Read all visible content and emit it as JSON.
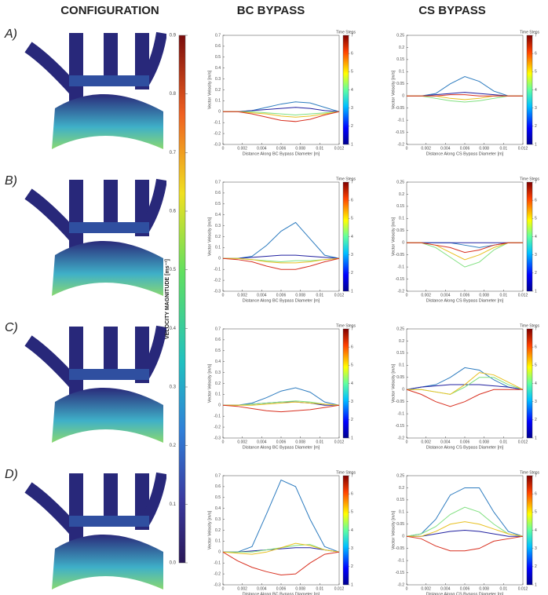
{
  "headers": [
    "CONFIGURATION",
    "BC BYPASS",
    "CS BYPASS"
  ],
  "row_labels": [
    "A)",
    "B)",
    "C)",
    "D)"
  ],
  "colorbar": {
    "label": "VELOCITY MAGNITUDE [ms⁻¹]",
    "lim": [
      0,
      0.9
    ],
    "ticks": [
      {
        "value": 0,
        "label": "0.0"
      },
      0.1,
      0.2,
      0.3,
      0.4,
      0.5,
      0.6,
      0.7,
      0.8,
      0.9
    ]
  },
  "chart_data": [
    {
      "type": "line",
      "xlabel": "Distance Along BC Bypass Diameter [m]",
      "ylabel": "Vector Velocity [m/s]",
      "x": [
        0,
        0.0015,
        0.003,
        0.0045,
        0.006,
        0.0075,
        0.009,
        0.0105,
        0.012
      ],
      "xlim": [
        0,
        0.012
      ],
      "xticks": [
        0,
        0.002,
        0.004,
        0.006,
        0.008,
        0.01,
        0.012
      ],
      "ylim": [
        -0.3,
        0.7
      ],
      "yticks": [
        -0.3,
        -0.2,
        -0.1,
        0,
        0.1,
        0.2,
        0.3,
        0.4,
        0.5,
        0.6,
        0.7
      ],
      "colorbar": {
        "label": "Time Steps",
        "lim": [
          1,
          7
        ],
        "ticks": [
          1,
          2,
          3,
          4,
          5,
          6,
          7
        ]
      },
      "series": [
        {
          "color": "#2c7bbf",
          "values": [
            0,
            0,
            0.01,
            0.04,
            0.07,
            0.09,
            0.08,
            0.04,
            0
          ]
        },
        {
          "color": "#2020a0",
          "values": [
            0,
            0,
            0.01,
            0.02,
            0.03,
            0.04,
            0.03,
            0.01,
            0
          ]
        },
        {
          "color": "#80e080",
          "values": [
            0,
            0,
            0,
            -0.01,
            -0.02,
            -0.03,
            -0.02,
            -0.01,
            0
          ]
        },
        {
          "color": "#e8c020",
          "values": [
            0,
            0,
            -0.01,
            -0.02,
            -0.04,
            -0.05,
            -0.04,
            -0.02,
            0
          ]
        },
        {
          "color": "#d83020",
          "values": [
            0,
            0,
            -0.02,
            -0.05,
            -0.08,
            -0.09,
            -0.07,
            -0.03,
            0
          ]
        }
      ]
    },
    {
      "type": "line",
      "xlabel": "Distance Along CS Bypass Diameter [m]",
      "ylabel": "Vector Velocity [m/s]",
      "x": [
        0,
        0.0015,
        0.003,
        0.0045,
        0.006,
        0.0075,
        0.009,
        0.0105,
        0.012
      ],
      "xlim": [
        0,
        0.012
      ],
      "xticks": [
        0,
        0.002,
        0.004,
        0.006,
        0.008,
        0.01,
        0.012
      ],
      "ylim": [
        -0.2,
        0.25
      ],
      "yticks": [
        -0.2,
        -0.15,
        -0.1,
        -0.05,
        0,
        0.05,
        0.1,
        0.15,
        0.2,
        0.25
      ],
      "colorbar": {
        "label": "Time Steps",
        "lim": [
          1,
          7
        ],
        "ticks": [
          1,
          2,
          3,
          4,
          5,
          6,
          7
        ]
      },
      "series": [
        {
          "color": "#2c7bbf",
          "values": [
            0,
            0,
            0.01,
            0.05,
            0.08,
            0.06,
            0.02,
            0,
            0
          ]
        },
        {
          "color": "#2020a0",
          "values": [
            0,
            0,
            0.005,
            0.01,
            0.015,
            0.01,
            0.005,
            0,
            0
          ]
        },
        {
          "color": "#80e080",
          "values": [
            0,
            0,
            -0.01,
            -0.02,
            -0.025,
            -0.02,
            -0.01,
            0,
            0
          ]
        },
        {
          "color": "#e8c020",
          "values": [
            0,
            0,
            0,
            -0.01,
            -0.015,
            -0.01,
            0,
            0,
            0
          ]
        },
        {
          "color": "#d83020",
          "values": [
            0,
            0,
            0,
            0.005,
            0.005,
            0,
            0,
            0,
            0
          ]
        }
      ]
    },
    {
      "type": "line",
      "xlabel": "Distance Along BC Bypass Diameter [m]",
      "ylabel": "Vector Velocity [m/s]",
      "x": [
        0,
        0.0015,
        0.003,
        0.0045,
        0.006,
        0.0075,
        0.009,
        0.0105,
        0.012
      ],
      "xlim": [
        0,
        0.012
      ],
      "xticks": [
        0,
        0.002,
        0.004,
        0.006,
        0.008,
        0.01,
        0.012
      ],
      "ylim": [
        -0.3,
        0.7
      ],
      "yticks": [
        -0.3,
        -0.2,
        -0.1,
        0,
        0.1,
        0.2,
        0.3,
        0.4,
        0.5,
        0.6,
        0.7
      ],
      "colorbar": {
        "label": "Time Steps",
        "lim": [
          1,
          7
        ],
        "ticks": [
          1,
          2,
          3,
          4,
          5,
          6,
          7
        ]
      },
      "series": [
        {
          "color": "#2c7bbf",
          "values": [
            0,
            0,
            0.02,
            0.12,
            0.25,
            0.33,
            0.18,
            0.03,
            0
          ]
        },
        {
          "color": "#2020a0",
          "values": [
            0,
            0,
            0.01,
            0.02,
            0.03,
            0.03,
            0.02,
            0.01,
            0
          ]
        },
        {
          "color": "#80e080",
          "values": [
            0,
            0,
            -0.01,
            -0.02,
            -0.03,
            -0.02,
            -0.02,
            -0.01,
            0
          ]
        },
        {
          "color": "#e8c020",
          "values": [
            0,
            0,
            -0.01,
            -0.03,
            -0.04,
            -0.04,
            -0.03,
            -0.01,
            0
          ]
        },
        {
          "color": "#d83020",
          "values": [
            0,
            -0.01,
            -0.03,
            -0.07,
            -0.1,
            -0.1,
            -0.07,
            -0.03,
            0
          ]
        }
      ]
    },
    {
      "type": "line",
      "xlabel": "Distance Along CS Bypass Diameter [m]",
      "ylabel": "Vector Velocity [m/s]",
      "x": [
        0,
        0.0015,
        0.003,
        0.0045,
        0.006,
        0.0075,
        0.009,
        0.0105,
        0.012
      ],
      "xlim": [
        0,
        0.012
      ],
      "xticks": [
        0,
        0.002,
        0.004,
        0.006,
        0.008,
        0.01,
        0.012
      ],
      "ylim": [
        -0.2,
        0.25
      ],
      "yticks": [
        -0.2,
        -0.15,
        -0.1,
        -0.05,
        0,
        0.05,
        0.1,
        0.15,
        0.2,
        0.25
      ],
      "colorbar": {
        "label": "Time Steps",
        "lim": [
          1,
          7
        ],
        "ticks": [
          1,
          2,
          3,
          4,
          5,
          6,
          7
        ]
      },
      "series": [
        {
          "color": "#2c7bbf",
          "values": [
            0,
            0,
            0,
            0,
            -0.01,
            -0.02,
            -0.01,
            0,
            0
          ]
        },
        {
          "color": "#2020a0",
          "values": [
            0,
            0,
            0,
            0,
            0,
            0,
            0,
            0,
            0
          ]
        },
        {
          "color": "#80e080",
          "values": [
            0,
            0,
            -0.02,
            -0.06,
            -0.1,
            -0.08,
            -0.03,
            0,
            0
          ]
        },
        {
          "color": "#e8c020",
          "values": [
            0,
            0,
            -0.01,
            -0.04,
            -0.07,
            -0.05,
            -0.02,
            0,
            0
          ]
        },
        {
          "color": "#d83020",
          "values": [
            0,
            0,
            -0.01,
            -0.02,
            -0.04,
            -0.03,
            -0.01,
            0,
            0
          ]
        }
      ]
    },
    {
      "type": "line",
      "xlabel": "Distance Along BC Bypass Diameter [m]",
      "ylabel": "Vector Velocity [m/s]",
      "x": [
        0,
        0.0015,
        0.003,
        0.0045,
        0.006,
        0.0075,
        0.009,
        0.0105,
        0.012
      ],
      "xlim": [
        0,
        0.012
      ],
      "xticks": [
        0,
        0.002,
        0.004,
        0.006,
        0.008,
        0.01,
        0.012
      ],
      "ylim": [
        -0.3,
        0.7
      ],
      "yticks": [
        -0.3,
        -0.2,
        -0.1,
        0,
        0.1,
        0.2,
        0.3,
        0.4,
        0.5,
        0.6,
        0.7
      ],
      "colorbar": {
        "label": "Time Steps",
        "lim": [
          1,
          7
        ],
        "ticks": [
          1,
          2,
          3,
          4,
          5,
          6,
          7
        ]
      },
      "series": [
        {
          "color": "#2c7bbf",
          "values": [
            0,
            0,
            0.02,
            0.07,
            0.13,
            0.16,
            0.12,
            0.03,
            0
          ]
        },
        {
          "color": "#2020a0",
          "values": [
            0,
            0,
            0.01,
            0.02,
            0.03,
            0.03,
            0.02,
            0,
            0
          ]
        },
        {
          "color": "#80e080",
          "values": [
            0,
            0,
            0.01,
            0.02,
            0.03,
            0.04,
            0.03,
            0.01,
            0
          ]
        },
        {
          "color": "#e8c020",
          "values": [
            0,
            0,
            0,
            0.01,
            0.02,
            0.03,
            0.02,
            0.01,
            0
          ]
        },
        {
          "color": "#d83020",
          "values": [
            0,
            -0.01,
            -0.03,
            -0.05,
            -0.06,
            -0.05,
            -0.04,
            -0.02,
            0
          ]
        }
      ]
    },
    {
      "type": "line",
      "xlabel": "Distance Along CS Bypass Diameter [m]",
      "ylabel": "Vector Velocity [m/s]",
      "x": [
        0,
        0.0015,
        0.003,
        0.0045,
        0.006,
        0.0075,
        0.009,
        0.0105,
        0.012
      ],
      "xlim": [
        0,
        0.012
      ],
      "xticks": [
        0,
        0.002,
        0.004,
        0.006,
        0.008,
        0.01,
        0.012
      ],
      "ylim": [
        -0.2,
        0.25
      ],
      "yticks": [
        -0.2,
        -0.15,
        -0.1,
        -0.05,
        0,
        0.05,
        0.1,
        0.15,
        0.2,
        0.25
      ],
      "colorbar": {
        "label": "Time Steps",
        "lim": [
          1,
          7
        ],
        "ticks": [
          1,
          2,
          3,
          4,
          5,
          6,
          7
        ]
      },
      "series": [
        {
          "color": "#2c7bbf",
          "values": [
            0,
            0.01,
            0.02,
            0.05,
            0.09,
            0.08,
            0.04,
            0.01,
            0
          ]
        },
        {
          "color": "#2020a0",
          "values": [
            0,
            0.01,
            0.015,
            0.02,
            0.02,
            0.02,
            0.015,
            0.01,
            0
          ]
        },
        {
          "color": "#80e080",
          "values": [
            0,
            0,
            -0.01,
            -0.02,
            0.01,
            0.05,
            0.05,
            0.02,
            0
          ]
        },
        {
          "color": "#e8c020",
          "values": [
            0,
            0,
            -0.01,
            -0.02,
            0.02,
            0.07,
            0.06,
            0.03,
            0
          ]
        },
        {
          "color": "#d83020",
          "values": [
            0,
            -0.02,
            -0.05,
            -0.07,
            -0.05,
            -0.02,
            0,
            0,
            0
          ]
        }
      ]
    },
    {
      "type": "line",
      "xlabel": "Distance Along BC Bypass Diameter [m]",
      "ylabel": "Vector Velocity [m/s]",
      "x": [
        0,
        0.0015,
        0.003,
        0.0045,
        0.006,
        0.0075,
        0.009,
        0.0105,
        0.012
      ],
      "xlim": [
        0,
        0.012
      ],
      "xticks": [
        0,
        0.002,
        0.004,
        0.006,
        0.008,
        0.01,
        0.012
      ],
      "ylim": [
        -0.3,
        0.7
      ],
      "yticks": [
        -0.3,
        -0.2,
        -0.1,
        0,
        0.1,
        0.2,
        0.3,
        0.4,
        0.5,
        0.6,
        0.7
      ],
      "colorbar": {
        "label": "Time Steps",
        "lim": [
          1,
          7
        ],
        "ticks": [
          1,
          2,
          3,
          4,
          5,
          6,
          7
        ]
      },
      "series": [
        {
          "color": "#2c7bbf",
          "values": [
            0,
            0,
            0.05,
            0.35,
            0.66,
            0.6,
            0.3,
            0.05,
            0
          ]
        },
        {
          "color": "#2020a0",
          "values": [
            0,
            0,
            0.01,
            0.02,
            0.03,
            0.04,
            0.04,
            0.02,
            0
          ]
        },
        {
          "color": "#80e080",
          "values": [
            0,
            0,
            0,
            0.02,
            0.04,
            0.06,
            0.07,
            0.02,
            0
          ]
        },
        {
          "color": "#e8c020",
          "values": [
            0,
            -0.01,
            -0.02,
            0,
            0.04,
            0.08,
            0.06,
            0.02,
            0
          ]
        },
        {
          "color": "#d83020",
          "values": [
            0,
            -0.08,
            -0.14,
            -0.18,
            -0.21,
            -0.2,
            -0.1,
            -0.02,
            0
          ]
        }
      ]
    },
    {
      "type": "line",
      "xlabel": "Distance Along CS Bypass Diameter [m]",
      "ylabel": "Vector Velocity [m/s]",
      "x": [
        0,
        0.0015,
        0.003,
        0.0045,
        0.006,
        0.0075,
        0.009,
        0.0105,
        0.012
      ],
      "xlim": [
        0,
        0.012
      ],
      "xticks": [
        0,
        0.002,
        0.004,
        0.006,
        0.008,
        0.01,
        0.012
      ],
      "ylim": [
        -0.2,
        0.25
      ],
      "yticks": [
        -0.2,
        -0.15,
        -0.1,
        -0.05,
        0,
        0.05,
        0.1,
        0.15,
        0.2,
        0.25
      ],
      "colorbar": {
        "label": "Time Steps",
        "lim": [
          1,
          7
        ],
        "ticks": [
          1,
          2,
          3,
          4,
          5,
          6,
          7
        ]
      },
      "series": [
        {
          "color": "#2c7bbf",
          "values": [
            0,
            0.01,
            0.07,
            0.17,
            0.2,
            0.2,
            0.1,
            0.02,
            0
          ]
        },
        {
          "color": "#2020a0",
          "values": [
            0,
            0,
            0.01,
            0.02,
            0.025,
            0.02,
            0.01,
            0,
            0
          ]
        },
        {
          "color": "#80e080",
          "values": [
            0,
            0.01,
            0.04,
            0.09,
            0.12,
            0.1,
            0.05,
            0.01,
            0
          ]
        },
        {
          "color": "#e8c020",
          "values": [
            0,
            0,
            0.02,
            0.05,
            0.06,
            0.05,
            0.03,
            0.01,
            0
          ]
        },
        {
          "color": "#d83020",
          "values": [
            0,
            -0.01,
            -0.04,
            -0.06,
            -0.06,
            -0.05,
            -0.02,
            -0.01,
            0
          ]
        }
      ]
    }
  ]
}
